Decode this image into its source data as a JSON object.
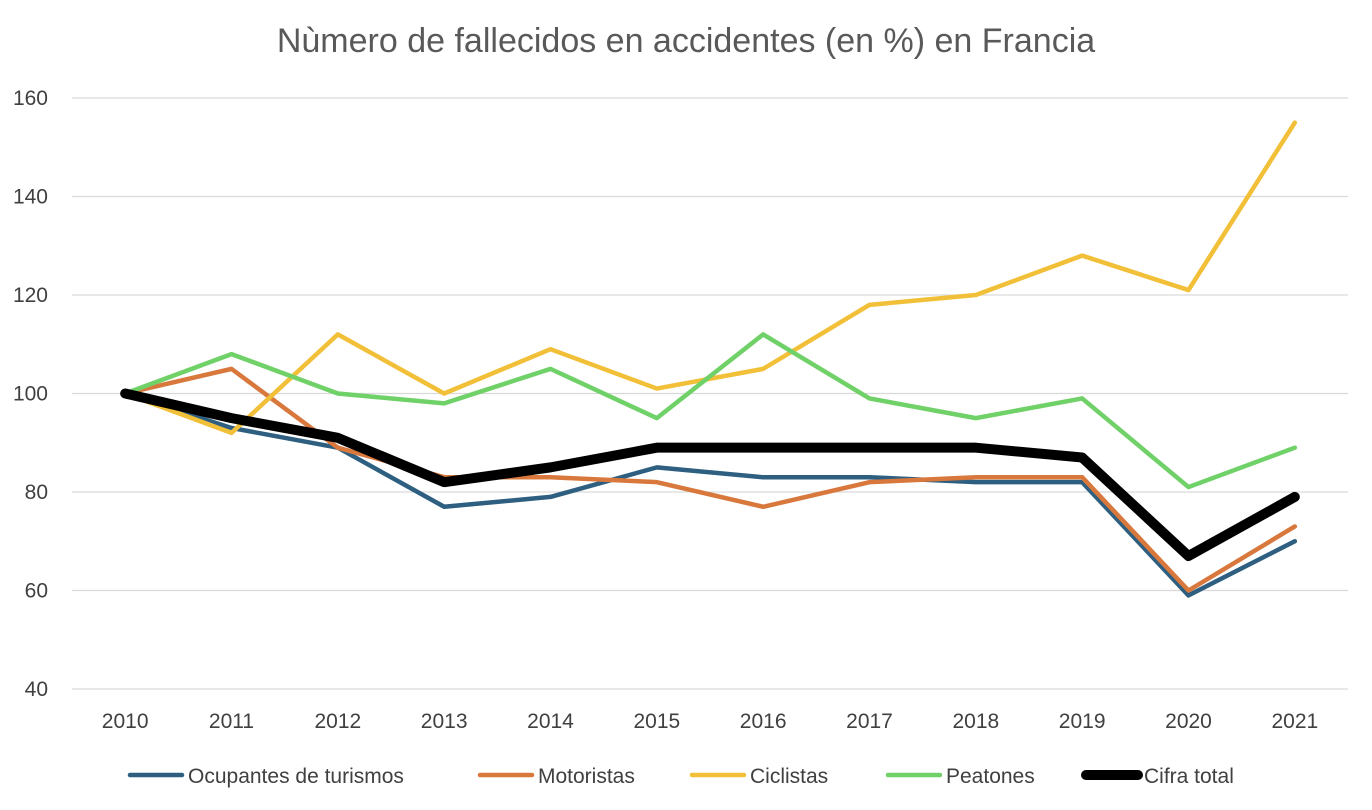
{
  "chart_data": {
    "type": "line",
    "title": "Nùmero de fallecidos en accidentes (en %) en Francia",
    "xlabel": "",
    "ylabel": "",
    "categories": [
      "2010",
      "2011",
      "2012",
      "2013",
      "2014",
      "2015",
      "2016",
      "2017",
      "2018",
      "2019",
      "2020",
      "2021"
    ],
    "ylim": [
      40,
      160
    ],
    "yticks": [
      "40",
      "60",
      "80",
      "100",
      "120",
      "140",
      "160"
    ],
    "grid": true,
    "legend_position": "bottom",
    "series": [
      {
        "name": "Ocupantes de turismos",
        "color": "#2e5f80",
        "values": [
          100,
          93,
          89,
          77,
          79,
          85,
          83,
          83,
          82,
          82,
          59,
          70
        ]
      },
      {
        "name": "Motoristas",
        "color": "#d9783d",
        "values": [
          100,
          105,
          89,
          83,
          83,
          82,
          77,
          82,
          83,
          83,
          60,
          73
        ]
      },
      {
        "name": "Ciclistas",
        "color": "#f2c038",
        "values": [
          100,
          92,
          112,
          100,
          109,
          101,
          105,
          118,
          120,
          128,
          121,
          155
        ]
      },
      {
        "name": "Peatones",
        "color": "#6fd167",
        "values": [
          100,
          108,
          100,
          98,
          105,
          95,
          112,
          99,
          95,
          99,
          81,
          89
        ]
      },
      {
        "name": "Cifra total",
        "color": "#000000",
        "values": [
          100,
          95,
          91,
          82,
          85,
          89,
          89,
          89,
          89,
          87,
          67,
          79
        ]
      }
    ]
  }
}
